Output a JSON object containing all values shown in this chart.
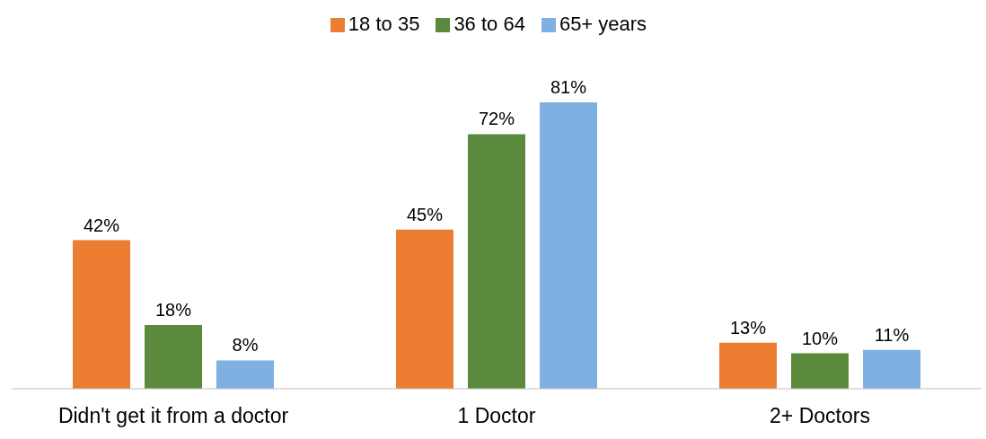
{
  "chart_data": {
    "type": "bar",
    "categories": [
      "Didn't get it from a doctor",
      "1 Doctor",
      "2+ Doctors"
    ],
    "series": [
      {
        "name": "18 to 35",
        "color": "#ed7d31",
        "values": [
          42,
          45,
          13
        ],
        "value_labels": [
          "42%",
          "45%",
          "13%"
        ]
      },
      {
        "name": "36 to 64",
        "color": "#5b8a3c",
        "values": [
          18,
          72,
          10
        ],
        "value_labels": [
          "18%",
          "72%",
          "10%"
        ]
      },
      {
        "name": "65+ years",
        "color": "#7fb0e2",
        "values": [
          8,
          81,
          11
        ],
        "value_labels": [
          "8%",
          "81%",
          "11%"
        ]
      }
    ],
    "legend": "top"
  }
}
